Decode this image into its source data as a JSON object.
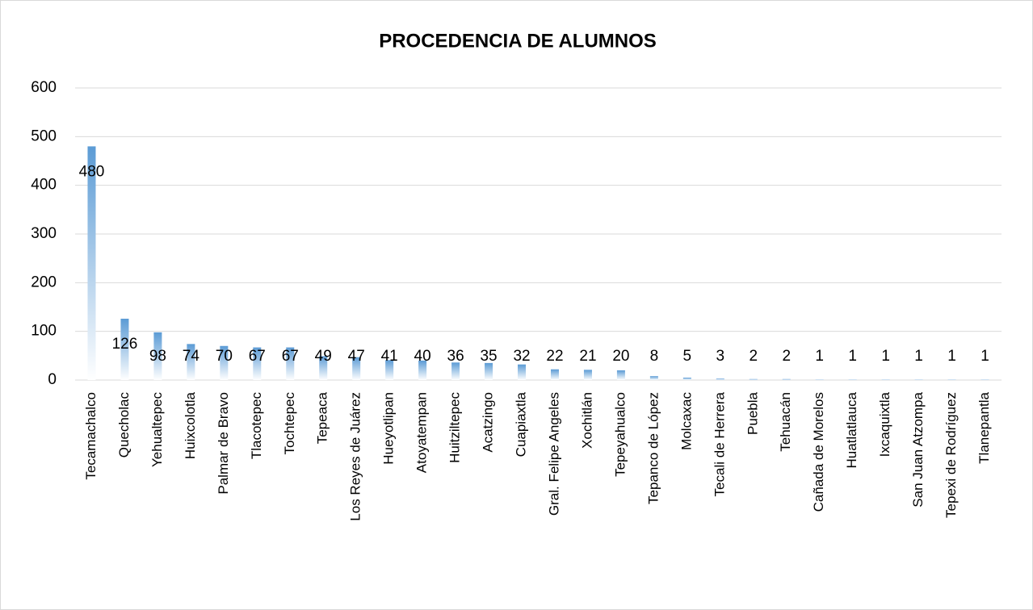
{
  "chart_data": {
    "type": "bar",
    "title": "PROCEDENCIA DE ALUMNOS",
    "categories": [
      "Tecamachalco",
      "Quecholac",
      "Yehualtepec",
      "Huixcolotla",
      "Palmar de Bravo",
      "Tlacotepec",
      "Tochtepec",
      "Tepeaca",
      "Los Reyes de Juárez",
      "Hueyotlipan",
      "Atoyatempan",
      "Huitziltepec",
      "Acatzingo",
      "Cuapiaxtla",
      "Gral. Felipe Angeles",
      "Xochitlán",
      "Tepeyahualco",
      "Tepanco de López",
      "Molcaxac",
      "Tecali de Herrera",
      "Puebla",
      "Tehuacán",
      "Cañada de Morelos",
      "Huatlatlauca",
      "Ixcaquixtla",
      "San Juan Atzompa",
      "Tepexi de Rodríguez",
      "Tlanepantla"
    ],
    "values": [
      480,
      126,
      98,
      74,
      70,
      67,
      67,
      49,
      47,
      41,
      40,
      36,
      35,
      32,
      22,
      21,
      20,
      8,
      5,
      3,
      2,
      2,
      1,
      1,
      1,
      1,
      1,
      1
    ],
    "color": "#5b9bd5",
    "ylim": [
      0,
      600
    ],
    "yticks": [
      0,
      100,
      200,
      300,
      400,
      500,
      600
    ],
    "grid": true
  }
}
